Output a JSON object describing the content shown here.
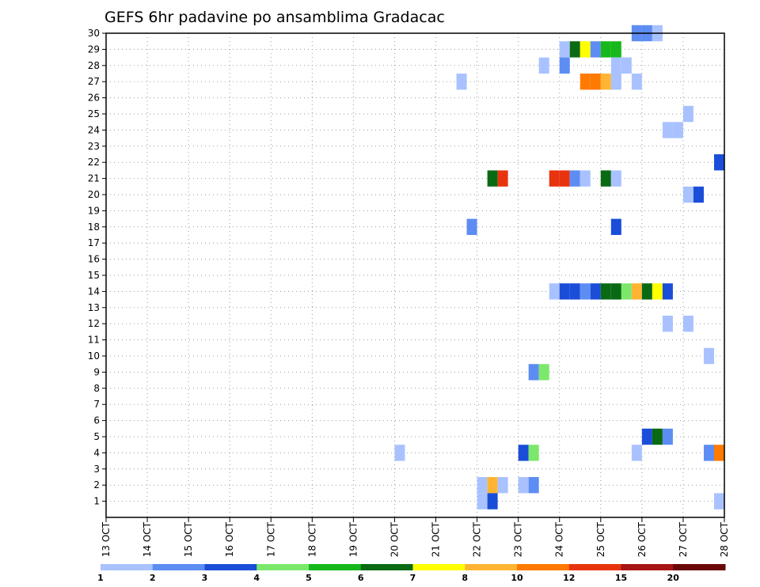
{
  "chart_data": {
    "type": "heatmap",
    "title": "GEFS 6hr padavine po ansamblima Gradacac",
    "xlabel": "",
    "ylabel": "",
    "x_ticks": [
      "13 OCT",
      "14 OCT",
      "15 OCT",
      "16 OCT",
      "17 OCT",
      "18 OCT",
      "19 OCT",
      "20 OCT",
      "21 OCT",
      "22 OCT",
      "23 OCT",
      "24 OCT",
      "25 OCT",
      "26 OCT",
      "27 OCT",
      "28 OCT"
    ],
    "x_range_days": [
      13,
      28
    ],
    "y_ticks": [
      "1",
      "2",
      "3",
      "4",
      "5",
      "6",
      "7",
      "8",
      "9",
      "10",
      "11",
      "12",
      "13",
      "14",
      "15",
      "16",
      "17",
      "18",
      "19",
      "20",
      "21",
      "22",
      "23",
      "24",
      "25",
      "26",
      "27",
      "28",
      "29",
      "30"
    ],
    "y_range": [
      0,
      30
    ],
    "grid": true,
    "colorbar": {
      "labels": [
        "1",
        "2",
        "3",
        "4",
        "5",
        "6",
        "7",
        "8",
        "10",
        "12",
        "15",
        "20"
      ],
      "colors": [
        "#a9c2ff",
        "#5d8df2",
        "#1a4ed8",
        "#7be86b",
        "#16b81c",
        "#0a6a14",
        "#ffff00",
        "#ffb533",
        "#ff7a00",
        "#e8340e",
        "#a61414",
        "#6a0808"
      ]
    },
    "cells": [
      {
        "member": 30,
        "day": 25.875,
        "level": 2
      },
      {
        "member": 30,
        "day": 26.125,
        "level": 2
      },
      {
        "member": 30,
        "day": 26.375,
        "level": 1
      },
      {
        "member": 29,
        "day": 24.125,
        "level": 1
      },
      {
        "member": 29,
        "day": 24.375,
        "level": 6
      },
      {
        "member": 29,
        "day": 24.625,
        "level": 7
      },
      {
        "member": 29,
        "day": 24.875,
        "level": 2
      },
      {
        "member": 29,
        "day": 25.125,
        "level": 5
      },
      {
        "member": 29,
        "day": 25.375,
        "level": 5
      },
      {
        "member": 28,
        "day": 23.625,
        "level": 1
      },
      {
        "member": 28,
        "day": 24.125,
        "level": 2
      },
      {
        "member": 28,
        "day": 25.375,
        "level": 1
      },
      {
        "member": 28,
        "day": 25.625,
        "level": 1
      },
      {
        "member": 27,
        "day": 21.625,
        "level": 1
      },
      {
        "member": 27,
        "day": 24.625,
        "level": 9
      },
      {
        "member": 27,
        "day": 24.875,
        "level": 9
      },
      {
        "member": 27,
        "day": 25.125,
        "level": 8
      },
      {
        "member": 27,
        "day": 25.375,
        "level": 1
      },
      {
        "member": 27,
        "day": 25.875,
        "level": 1
      },
      {
        "member": 25,
        "day": 27.125,
        "level": 1
      },
      {
        "member": 24,
        "day": 26.625,
        "level": 1
      },
      {
        "member": 24,
        "day": 26.875,
        "level": 1
      },
      {
        "member": 22,
        "day": 27.875,
        "level": 3
      },
      {
        "member": 21,
        "day": 22.375,
        "level": 6
      },
      {
        "member": 21,
        "day": 22.625,
        "level": 10
      },
      {
        "member": 21,
        "day": 23.875,
        "level": 10
      },
      {
        "member": 21,
        "day": 24.125,
        "level": 10
      },
      {
        "member": 21,
        "day": 24.375,
        "level": 2
      },
      {
        "member": 21,
        "day": 24.625,
        "level": 1
      },
      {
        "member": 21,
        "day": 25.125,
        "level": 6
      },
      {
        "member": 21,
        "day": 25.375,
        "level": 1
      },
      {
        "member": 20,
        "day": 27.125,
        "level": 1
      },
      {
        "member": 20,
        "day": 27.375,
        "level": 3
      },
      {
        "member": 18,
        "day": 21.875,
        "level": 2
      },
      {
        "member": 18,
        "day": 25.375,
        "level": 3
      },
      {
        "member": 14,
        "day": 23.875,
        "level": 1
      },
      {
        "member": 14,
        "day": 24.125,
        "level": 3
      },
      {
        "member": 14,
        "day": 24.375,
        "level": 3
      },
      {
        "member": 14,
        "day": 24.625,
        "level": 2
      },
      {
        "member": 14,
        "day": 24.875,
        "level": 3
      },
      {
        "member": 14,
        "day": 25.125,
        "level": 6
      },
      {
        "member": 14,
        "day": 25.375,
        "level": 6
      },
      {
        "member": 14,
        "day": 25.625,
        "level": 4
      },
      {
        "member": 14,
        "day": 25.875,
        "level": 8
      },
      {
        "member": 14,
        "day": 26.125,
        "level": 6
      },
      {
        "member": 14,
        "day": 26.375,
        "level": 7
      },
      {
        "member": 14,
        "day": 26.625,
        "level": 3
      },
      {
        "member": 12,
        "day": 26.625,
        "level": 1
      },
      {
        "member": 12,
        "day": 27.125,
        "level": 1
      },
      {
        "member": 10,
        "day": 27.625,
        "level": 1
      },
      {
        "member": 9,
        "day": 23.375,
        "level": 2
      },
      {
        "member": 9,
        "day": 23.625,
        "level": 4
      },
      {
        "member": 5,
        "day": 26.125,
        "level": 3
      },
      {
        "member": 5,
        "day": 26.375,
        "level": 6
      },
      {
        "member": 5,
        "day": 26.625,
        "level": 2
      },
      {
        "member": 4,
        "day": 20.125,
        "level": 1
      },
      {
        "member": 4,
        "day": 23.125,
        "level": 3
      },
      {
        "member": 4,
        "day": 23.375,
        "level": 4
      },
      {
        "member": 4,
        "day": 25.875,
        "level": 1
      },
      {
        "member": 4,
        "day": 27.625,
        "level": 2
      },
      {
        "member": 4,
        "day": 27.875,
        "level": 9
      },
      {
        "member": 2,
        "day": 22.125,
        "level": 1
      },
      {
        "member": 2,
        "day": 22.375,
        "level": 8
      },
      {
        "member": 2,
        "day": 22.625,
        "level": 1
      },
      {
        "member": 2,
        "day": 23.125,
        "level": 1
      },
      {
        "member": 2,
        "day": 23.375,
        "level": 2
      },
      {
        "member": 1,
        "day": 22.125,
        "level": 1
      },
      {
        "member": 1,
        "day": 22.375,
        "level": 3
      },
      {
        "member": 1,
        "day": 27.875,
        "level": 1
      }
    ]
  }
}
